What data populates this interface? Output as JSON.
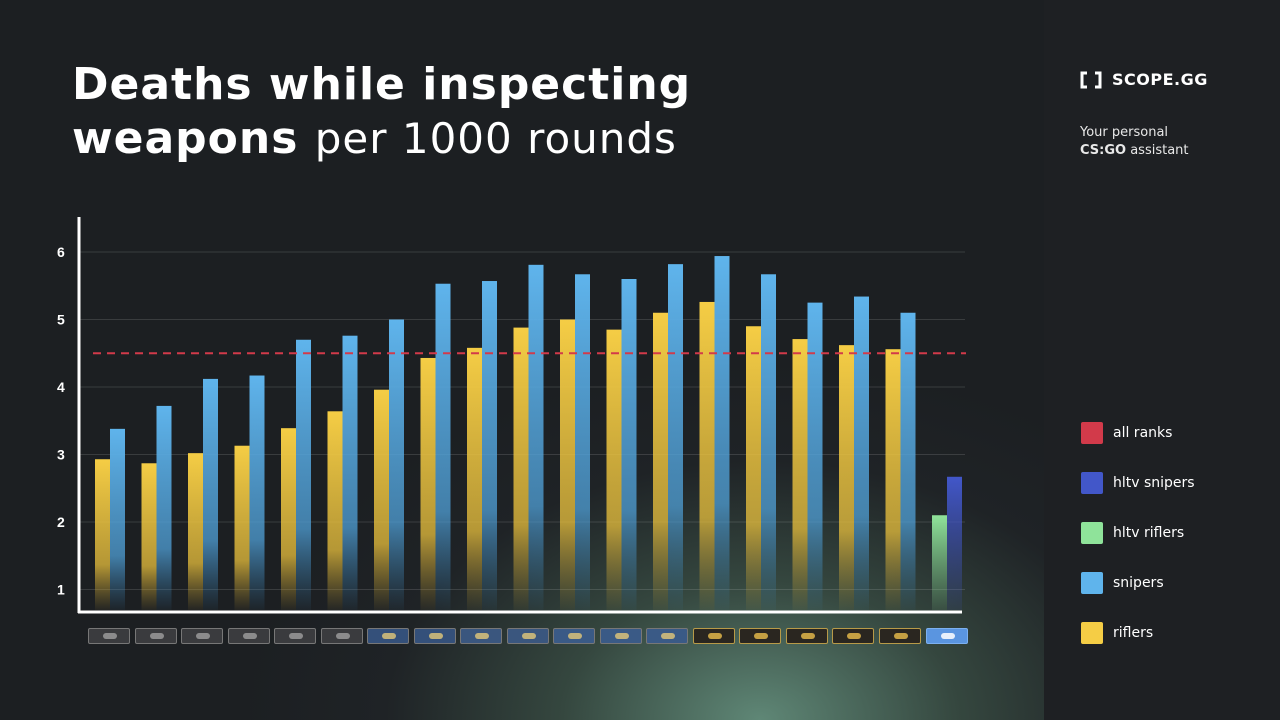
{
  "title": {
    "line1": "Deaths while inspecting",
    "line2_bold": "weapons",
    "line2_light": "per 1000 rounds"
  },
  "brand": {
    "logo_text": "SCOPE.GG",
    "tagline_line1": "Your personal",
    "tagline_strong": "CS:GO",
    "tagline_rest": "assistant"
  },
  "legend": [
    {
      "label": "all ranks",
      "color": "#d23a4a"
    },
    {
      "label": "hltv snipers",
      "color": "#4257c9"
    },
    {
      "label": "hltv riflers",
      "color": "#8fe39a"
    },
    {
      "label": "snipers",
      "color": "#5fb4ec"
    },
    {
      "label": "riflers",
      "color": "#f5cd45"
    }
  ],
  "rank_icons": [
    "silver-1-icon",
    "silver-2-icon",
    "silver-3-icon",
    "silver-4-icon",
    "silver-elite-icon",
    "silver-elite-master-icon",
    "gold-nova-1-icon",
    "gold-nova-2-icon",
    "gold-nova-3-icon",
    "gold-nova-master-icon",
    "master-guardian-1-icon",
    "master-guardian-2-icon",
    "master-guardian-elite-icon",
    "distinguished-master-guardian-icon",
    "legendary-eagle-icon",
    "legendary-eagle-master-icon",
    "supreme-master-first-class-icon",
    "global-elite-icon",
    "hltv-pro-icon"
  ],
  "chart_data": {
    "type": "bar",
    "ylim": [
      0.7,
      6.5
    ],
    "yticks": [
      1,
      2,
      3,
      4,
      5,
      6
    ],
    "grid": true,
    "legend_position": "right",
    "series": [
      {
        "name": "riflers",
        "color": "#f5cd45",
        "values": [
          2.93,
          2.87,
          3.02,
          3.13,
          3.39,
          3.64,
          3.96,
          4.43,
          4.58,
          4.88,
          5.0,
          4.85,
          5.1,
          5.26,
          4.9,
          4.71,
          4.62,
          4.56
        ]
      },
      {
        "name": "snipers",
        "color": "#5fb4ec",
        "values": [
          3.38,
          3.72,
          4.12,
          4.17,
          4.7,
          4.76,
          5.0,
          5.53,
          5.57,
          5.81,
          5.67,
          5.6,
          5.82,
          5.94,
          5.67,
          5.25,
          5.34,
          5.1
        ]
      },
      {
        "name": "hltv riflers",
        "color": "#8fe39a",
        "values": [
          2.1
        ]
      },
      {
        "name": "hltv snipers",
        "color": "#4257c9",
        "values": [
          2.67
        ]
      }
    ],
    "reference_line": {
      "name": "all ranks",
      "value": 4.5,
      "color": "#d23a4a"
    }
  }
}
